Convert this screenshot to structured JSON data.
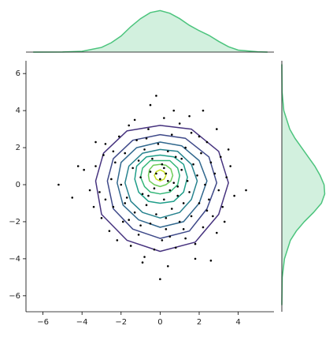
{
  "chart_data": {
    "type": "scatter",
    "x": [
      -5.2,
      -4.5,
      -4.2,
      -3.9,
      -3.6,
      -3.3,
      -3.1,
      -3.0,
      -2.9,
      -2.8,
      -2.6,
      -2.5,
      -2.4,
      -2.3,
      -2.2,
      -2.1,
      -2.0,
      -1.9,
      -1.8,
      -1.7,
      -1.6,
      -1.5,
      -1.4,
      -1.3,
      -1.2,
      -1.1,
      -1.0,
      -0.9,
      -0.8,
      -0.8,
      -0.7,
      -0.6,
      -0.5,
      -0.5,
      -0.4,
      -0.3,
      -0.2,
      -0.2,
      -0.1,
      0.0,
      0.0,
      0.1,
      0.1,
      0.2,
      0.2,
      0.3,
      0.3,
      0.4,
      0.4,
      0.5,
      0.6,
      0.6,
      0.7,
      0.8,
      0.8,
      0.9,
      1.0,
      1.0,
      1.1,
      1.2,
      1.3,
      1.3,
      1.4,
      1.5,
      1.6,
      1.6,
      1.7,
      1.8,
      1.9,
      2.0,
      2.1,
      2.2,
      2.2,
      2.3,
      2.4,
      2.5,
      2.6,
      2.6,
      2.7,
      2.8,
      2.9,
      3.0,
      3.1,
      3.2,
      3.3,
      3.4,
      3.6,
      4.4,
      3.8,
      -0.3,
      0.5,
      -1.0,
      1.2,
      -1.8,
      2.0,
      -2.4,
      0.7,
      -0.5,
      1.5,
      -1.3,
      -3.3,
      -2.8,
      2.9,
      -0.9,
      1.8,
      0.2,
      -0.2,
      0.4,
      -0.6,
      0.9,
      -1.1,
      1.1,
      -0.7,
      0.3,
      -1.6,
      2.4,
      -3.4,
      3.5
    ],
    "values": [
      0.0,
      -0.7,
      1.0,
      0.8,
      -0.3,
      2.3,
      -0.4,
      -1.8,
      1.6,
      2.2,
      -2.5,
      0.3,
      -1.2,
      1.2,
      -3.0,
      2.6,
      0.0,
      -2.0,
      1.7,
      -0.7,
      3.2,
      -3.3,
      0.9,
      -1.5,
      2.4,
      -2.7,
      0.4,
      -0.5,
      1.9,
      -3.9,
      -1.1,
      3.0,
      0.7,
      -2.1,
      1.4,
      -0.2,
      4.8,
      -1.6,
      2.2,
      -5.1,
      0.3,
      -3.0,
      1.1,
      -0.8,
      3.6,
      -2.4,
      0.6,
      1.8,
      -4.4,
      -0.3,
      2.7,
      -1.3,
      0.1,
      -3.4,
      1.5,
      -0.6,
      3.3,
      -2.0,
      0.8,
      -1.0,
      2.0,
      -2.9,
      0.2,
      -0.4,
      2.8,
      -1.7,
      1.1,
      -3.2,
      0.5,
      -1.0,
      1.7,
      -2.3,
      4.0,
      0.0,
      2.3,
      -0.8,
      -4.1,
      1.2,
      -1.7,
      0.6,
      3.0,
      -0.3,
      1.5,
      -1.2,
      -2.0,
      0.4,
      1.0,
      -0.3,
      -0.6,
      -3.5,
      -2.8,
      -2.2,
      -2.4,
      -1.0,
      2.6,
      1.8,
      4.0,
      4.3,
      3.7,
      3.5,
      1.0,
      -0.8,
      -2.6,
      -4.2,
      -4.0,
      0.9,
      0.6,
      0.2,
      -0.6,
      -0.1,
      1.3,
      1.4,
      2.5,
      -1.8,
      -1.9,
      -1.4,
      -1.2,
      1.9
    ],
    "color": "#000000",
    "xlim": [
      -6.87,
      5.83
    ],
    "ylim": [
      -6.86,
      6.69
    ],
    "xticks": [
      {
        "value": -6,
        "label": "−6"
      },
      {
        "value": -4,
        "label": "−4"
      },
      {
        "value": -2,
        "label": "−2"
      },
      0,
      2,
      4
    ],
    "yticks": [
      {
        "value": -6,
        "label": "−6"
      },
      {
        "value": -4,
        "label": "−4"
      },
      {
        "value": -2,
        "label": "−2"
      },
      0,
      2,
      4,
      6
    ],
    "contours": [
      {
        "color": "#46327e",
        "x": [
          3.5,
          3.0,
          1.6,
          0,
          -1.7,
          -2.9,
          -3.3,
          -3.0,
          -1.7,
          0,
          1.8,
          3.0
        ],
        "y": [
          0.1,
          1.8,
          3.0,
          3.2,
          2.9,
          1.7,
          0.2,
          -1.6,
          -3.0,
          -3.6,
          -3.1,
          -1.6
        ]
      },
      {
        "color": "#3e4989",
        "x": [
          2.9,
          2.5,
          1.3,
          0,
          -1.4,
          -2.4,
          -2.7,
          -2.4,
          -1.4,
          0,
          1.5,
          2.4
        ],
        "y": [
          0.1,
          1.5,
          2.5,
          2.7,
          2.4,
          1.4,
          0.2,
          -1.3,
          -2.4,
          -2.9,
          -2.5,
          -1.3
        ]
      },
      {
        "color": "#31688e",
        "x": [
          2.4,
          2.0,
          1.1,
          0,
          -1.2,
          -2.0,
          -2.2,
          -1.9,
          -1.1,
          0,
          1.2,
          2.0
        ],
        "y": [
          0.2,
          1.3,
          2.1,
          2.3,
          2.0,
          1.2,
          0.1,
          -1.1,
          -1.9,
          -2.3,
          -2.0,
          -1.0
        ]
      },
      {
        "color": "#26828e",
        "x": [
          1.9,
          1.6,
          0.9,
          0,
          -0.9,
          -1.6,
          -1.8,
          -1.5,
          -0.9,
          0,
          1.0,
          1.6
        ],
        "y": [
          0.2,
          1.1,
          1.8,
          1.9,
          1.7,
          1.0,
          0.1,
          -0.9,
          -1.5,
          -1.8,
          -1.5,
          -0.8
        ]
      },
      {
        "color": "#1f9e89",
        "x": [
          1.4,
          1.2,
          0.7,
          0,
          -0.7,
          -1.2,
          -1.3,
          -1.1,
          -0.6,
          0,
          0.7,
          1.2
        ],
        "y": [
          0.4,
          1.1,
          1.5,
          1.6,
          1.5,
          1.0,
          0.3,
          -0.4,
          -0.9,
          -1.0,
          -0.9,
          -0.4
        ]
      },
      {
        "color": "#35b779",
        "x": [
          1.0,
          0.9,
          0.5,
          0,
          -0.5,
          -0.9,
          -1.0,
          -0.8,
          -0.5,
          0,
          0.5,
          0.9
        ],
        "y": [
          0.5,
          0.9,
          1.3,
          1.3,
          1.3,
          0.9,
          0.4,
          -0.1,
          -0.4,
          -0.5,
          -0.4,
          0
        ]
      },
      {
        "color": "#6ece58",
        "x": [
          0.65,
          0.55,
          0.3,
          0,
          -0.35,
          -0.55,
          -0.6,
          -0.55,
          -0.3,
          0,
          0.3,
          0.55
        ],
        "y": [
          0.5,
          0.85,
          1.05,
          1.1,
          1.05,
          0.8,
          0.5,
          0.2,
          0,
          -0.1,
          0,
          0.2
        ]
      },
      {
        "color": "#c8e020",
        "x": [
          0.3,
          0.2,
          0,
          -0.2,
          -0.3,
          -0.2,
          0,
          0.2
        ],
        "y": [
          0.5,
          0.7,
          0.8,
          0.7,
          0.5,
          0.3,
          0.2,
          0.3
        ]
      }
    ],
    "marginal_x": {
      "color": "#4cc47d",
      "x": [
        -6.5,
        -5,
        -4,
        -3,
        -2.5,
        -2,
        -1.5,
        -1,
        -0.5,
        0,
        0.5,
        1,
        1.5,
        2,
        2.5,
        3,
        3.5,
        4,
        5,
        5.5
      ],
      "density": [
        0.0,
        0.001,
        0.006,
        0.035,
        0.07,
        0.12,
        0.19,
        0.25,
        0.295,
        0.31,
        0.29,
        0.25,
        0.2,
        0.16,
        0.125,
        0.08,
        0.04,
        0.015,
        0.002,
        0.0
      ],
      "lim": [
        0,
        0.33
      ]
    },
    "marginal_y": {
      "color": "#4cc47d",
      "y": [
        -6.5,
        -5,
        -4,
        -3,
        -2.5,
        -2,
        -1.5,
        -1,
        -0.5,
        0,
        0.5,
        1,
        1.5,
        2,
        2.5,
        3,
        4,
        5,
        6.5
      ],
      "density": [
        0,
        0.003,
        0.02,
        0.065,
        0.11,
        0.17,
        0.24,
        0.3,
        0.325,
        0.32,
        0.29,
        0.25,
        0.2,
        0.15,
        0.1,
        0.06,
        0.015,
        0.002,
        0
      ],
      "lim": [
        0,
        0.34
      ]
    }
  }
}
